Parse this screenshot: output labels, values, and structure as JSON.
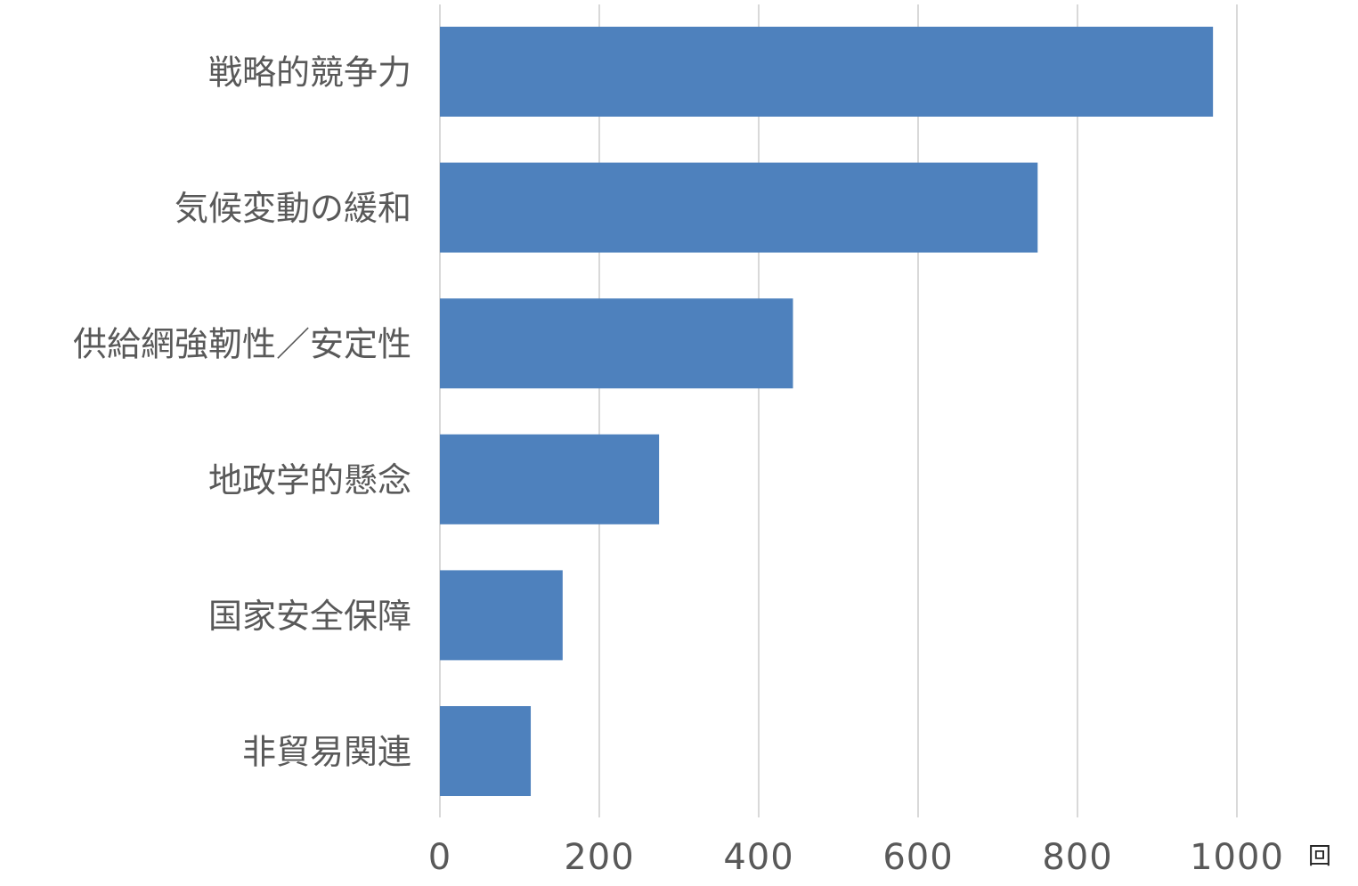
{
  "chart_data": {
    "type": "bar",
    "orientation": "horizontal",
    "categories": [
      "戦略的競争力",
      "気候変動の緩和",
      "供給網強靭性／安定性",
      "地政学的懸念",
      "国家安全保障",
      "非貿易関連"
    ],
    "values": [
      970,
      750,
      443,
      275,
      154,
      114
    ],
    "xlim": [
      0,
      1000
    ],
    "xticks": [
      0,
      200,
      400,
      600,
      800,
      1000
    ],
    "unit": "回",
    "grid": true,
    "bar_color": "#4e81bd",
    "grid_color": "#d9d9d9",
    "label_color": "#595959"
  }
}
